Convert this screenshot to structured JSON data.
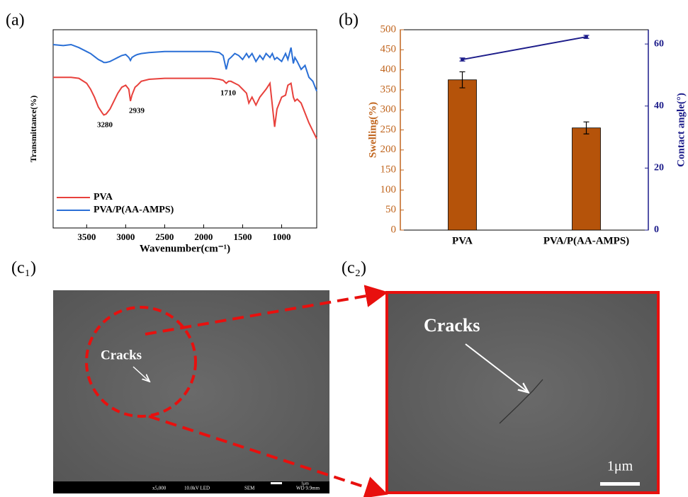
{
  "chart_data": [
    {
      "type": "line",
      "x_label": "Wavenumber(cm⁻¹)",
      "y_label": "Transmittance(%)",
      "xlim": [
        3930,
        550
      ],
      "xticks": [
        3500,
        3000,
        2500,
        2000,
        1500,
        1000
      ],
      "ylim": [
        0,
        100
      ],
      "legend": "lower left",
      "x": [
        3930,
        3800,
        3700,
        3600,
        3500,
        3450,
        3400,
        3350,
        3300,
        3280,
        3250,
        3200,
        3150,
        3100,
        3050,
        3000,
        2960,
        2939,
        2920,
        2880,
        2850,
        2800,
        2700,
        2500,
        2300,
        2100,
        1900,
        1800,
        1750,
        1710,
        1680,
        1650,
        1600,
        1550,
        1500,
        1450,
        1420,
        1380,
        1330,
        1280,
        1240,
        1200,
        1150,
        1120,
        1090,
        1060,
        1000,
        950,
        920,
        880,
        850,
        830,
        800,
        750,
        700,
        650,
        600,
        550
      ],
      "series": [
        {
          "name": "PVA",
          "color": "#e8413c",
          "values": [
            76,
            76,
            76,
            75.5,
            73,
            70,
            66,
            61,
            58,
            57,
            57.5,
            60,
            64,
            68,
            71,
            72,
            70,
            64,
            67,
            71,
            72,
            74,
            75,
            75.5,
            75.5,
            75.5,
            75.5,
            75,
            74.5,
            73,
            74,
            74,
            73,
            72,
            70,
            68,
            63,
            66,
            62,
            66,
            68,
            70,
            73,
            62,
            51,
            60,
            66,
            67,
            72,
            73,
            66,
            64,
            65,
            63,
            58,
            53,
            49,
            45
          ]
        },
        {
          "name": "PVA/P(AA-AMPS)",
          "color": "#2a6fd6",
          "values": [
            92.5,
            92,
            92.5,
            91,
            89,
            88,
            86.5,
            85,
            84,
            83.5,
            83.5,
            84,
            85,
            86,
            87,
            87.5,
            86,
            84.5,
            86,
            87,
            87.5,
            88,
            88.5,
            89,
            89,
            89,
            89,
            88.5,
            87,
            80,
            85,
            86,
            88,
            87,
            85,
            88,
            86,
            88,
            84,
            87,
            85,
            88,
            86,
            88,
            85,
            86,
            84,
            88,
            85,
            91,
            83,
            86,
            84,
            80,
            82,
            76,
            74,
            69
          ]
        }
      ],
      "annotations": [
        "3280",
        "2939",
        "1710"
      ]
    },
    {
      "type": "bar",
      "y_label": "Swelling(%)",
      "y2_label": "Contact angle(°)",
      "categories": [
        "PVA",
        "PVA/P(AA-AMPS)"
      ],
      "ylim": [
        0,
        500
      ],
      "yticks": [
        0,
        50,
        100,
        150,
        200,
        250,
        300,
        350,
        400,
        450,
        500
      ],
      "y2lim": [
        0,
        64.6
      ],
      "y2ticks": [
        0,
        20,
        40,
        60
      ],
      "y_color": "#c0651e",
      "y2_color": "#1c1c8a",
      "series": [
        {
          "type": "bar",
          "color": "#b5530a",
          "values": [
            375,
            255
          ],
          "errors": [
            20,
            15
          ]
        },
        {
          "type": "line",
          "axis": "y2",
          "color": "#1c1c8a",
          "values": [
            55.0,
            62.3
          ],
          "errors": [
            0.5,
            0.5
          ]
        }
      ]
    }
  ],
  "panel_labels": [
    "(a)",
    "(b)",
    "(c₁)",
    "(c₂)"
  ],
  "sem": {
    "left": {
      "annotation": "Cracks",
      "info_bar": [
        "x5,000",
        "10.0kV LED",
        "SEM",
        "WD 9.9mm"
      ],
      "scale_label": "1μm"
    },
    "right": {
      "annotation": "Cracks",
      "scale_label": "1μm"
    }
  }
}
